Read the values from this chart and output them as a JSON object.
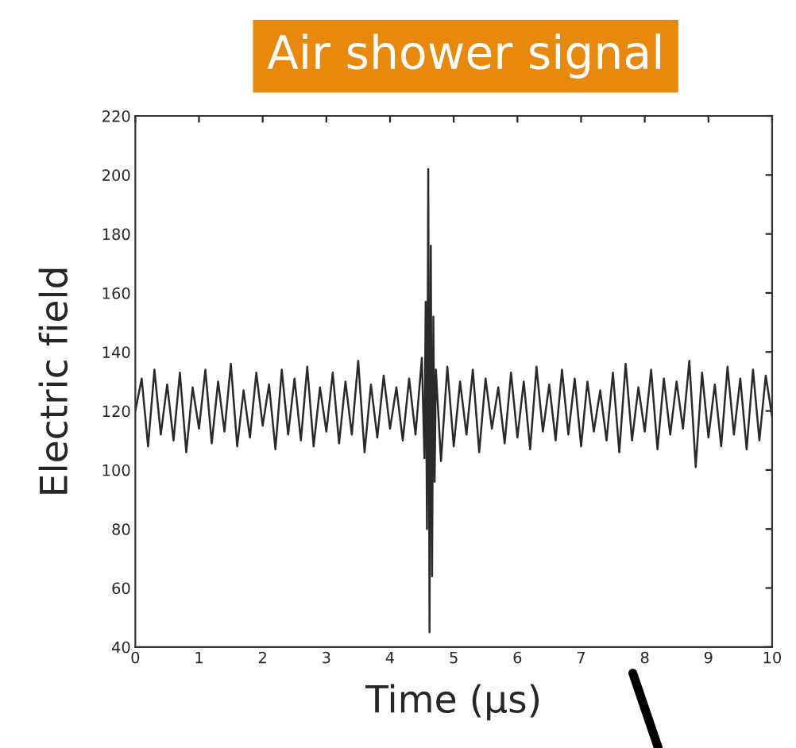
{
  "chart_data": {
    "type": "line",
    "title": "Air shower signal",
    "xlabel": "Time (μs)",
    "ylabel": "Electric field",
    "xlim": [
      0,
      10
    ],
    "ylim": [
      40,
      220
    ],
    "xticks": [
      0,
      1,
      2,
      3,
      4,
      5,
      6,
      7,
      8,
      9,
      10
    ],
    "yticks": [
      40,
      60,
      80,
      100,
      120,
      140,
      160,
      180,
      200,
      220
    ],
    "grid": false,
    "marker": "none",
    "line_style": "solid",
    "series": [
      {
        "color": "#2a2a2a",
        "x": [
          0,
          0.1,
          0.2,
          0.3,
          0.4,
          0.5,
          0.6,
          0.7,
          0.8,
          0.9,
          1.0,
          1.1,
          1.2,
          1.3,
          1.4,
          1.5,
          1.6,
          1.7,
          1.8,
          1.9,
          2.0,
          2.1,
          2.2,
          2.3,
          2.4,
          2.5,
          2.6,
          2.7,
          2.8,
          2.9,
          3.0,
          3.1,
          3.2,
          3.3,
          3.4,
          3.5,
          3.6,
          3.7,
          3.8,
          3.9,
          4.0,
          4.1,
          4.2,
          4.3,
          4.4,
          4.5,
          4.54,
          4.56,
          4.58,
          4.6,
          4.62,
          4.64,
          4.66,
          4.68,
          4.7,
          4.72,
          4.8,
          4.9,
          5.0,
          5.1,
          5.2,
          5.3,
          5.4,
          5.5,
          5.6,
          5.7,
          5.8,
          5.9,
          6.0,
          6.1,
          6.2,
          6.3,
          6.4,
          6.5,
          6.6,
          6.7,
          6.8,
          6.9,
          7.0,
          7.1,
          7.2,
          7.3,
          7.4,
          7.5,
          7.6,
          7.7,
          7.8,
          7.9,
          8.0,
          8.1,
          8.2,
          8.3,
          8.4,
          8.5,
          8.6,
          8.7,
          8.8,
          8.9,
          9.0,
          9.1,
          9.2,
          9.3,
          9.4,
          9.5,
          9.6,
          9.7,
          9.8,
          9.9,
          10.0
        ],
        "values": [
          120,
          131,
          108,
          134,
          112,
          129,
          110,
          133,
          106,
          128,
          114,
          134,
          109,
          130,
          113,
          136,
          108,
          127,
          111,
          133,
          115,
          129,
          107,
          134,
          112,
          131,
          110,
          135,
          108,
          128,
          113,
          133,
          109,
          130,
          112,
          137,
          106,
          129,
          111,
          132,
          114,
          128,
          110,
          131,
          112,
          138,
          104,
          157,
          80,
          202,
          45,
          176,
          64,
          152,
          96,
          134,
          103,
          135,
          108,
          130,
          112,
          134,
          106,
          131,
          114,
          128,
          109,
          133,
          111,
          130,
          107,
          135,
          113,
          129,
          110,
          134,
          112,
          131,
          108,
          130,
          113,
          127,
          110,
          133,
          106,
          136,
          110,
          128,
          113,
          134,
          107,
          131,
          112,
          130,
          114,
          137,
          101,
          133,
          111,
          129,
          108,
          135,
          112,
          131,
          107,
          134,
          110,
          132,
          118
        ]
      }
    ]
  }
}
